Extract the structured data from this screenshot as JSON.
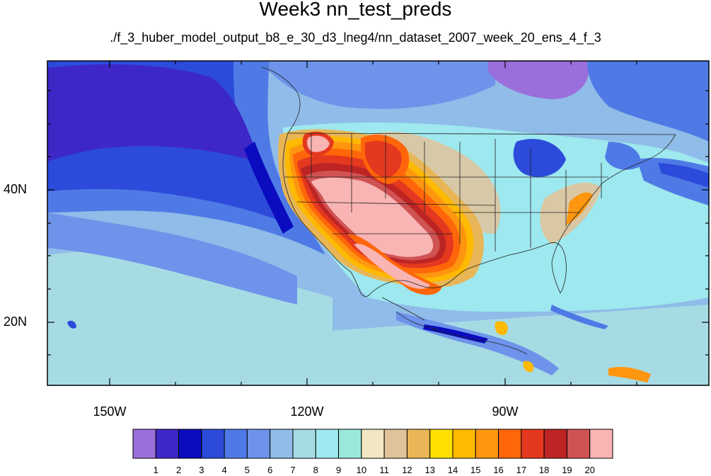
{
  "title": "Week3 nn_test_preds",
  "subtitle": "./f_3_huber_model_output_b8_e_30_d3_lneg4/nn_dataset_2007_week_20_ens_4_f_3",
  "map": {
    "lat_labels": [
      "40N",
      "20N"
    ],
    "lon_labels": [
      "150W",
      "120W",
      "90W"
    ]
  },
  "colorbar": {
    "labels": [
      "1",
      "2",
      "3",
      "4",
      "5",
      "6",
      "7",
      "8",
      "9",
      "10",
      "11",
      "12",
      "13",
      "14",
      "15",
      "16",
      "17",
      "18",
      "19",
      "20"
    ],
    "colors": [
      "#9a6fdb",
      "#3d27c6",
      "#0b0bbf",
      "#2c4bda",
      "#4f7ae6",
      "#6d93ea",
      "#8fbce8",
      "#a7dbe4",
      "#9ee8ef",
      "#98e9dc",
      "#f2e6c3",
      "#e0c39a",
      "#e8b656",
      "#fde001",
      "#feb901",
      "#ff9610",
      "#ff6609",
      "#e4381f",
      "#bd2525",
      "#d05353",
      "#f9b4b4"
    ]
  }
}
